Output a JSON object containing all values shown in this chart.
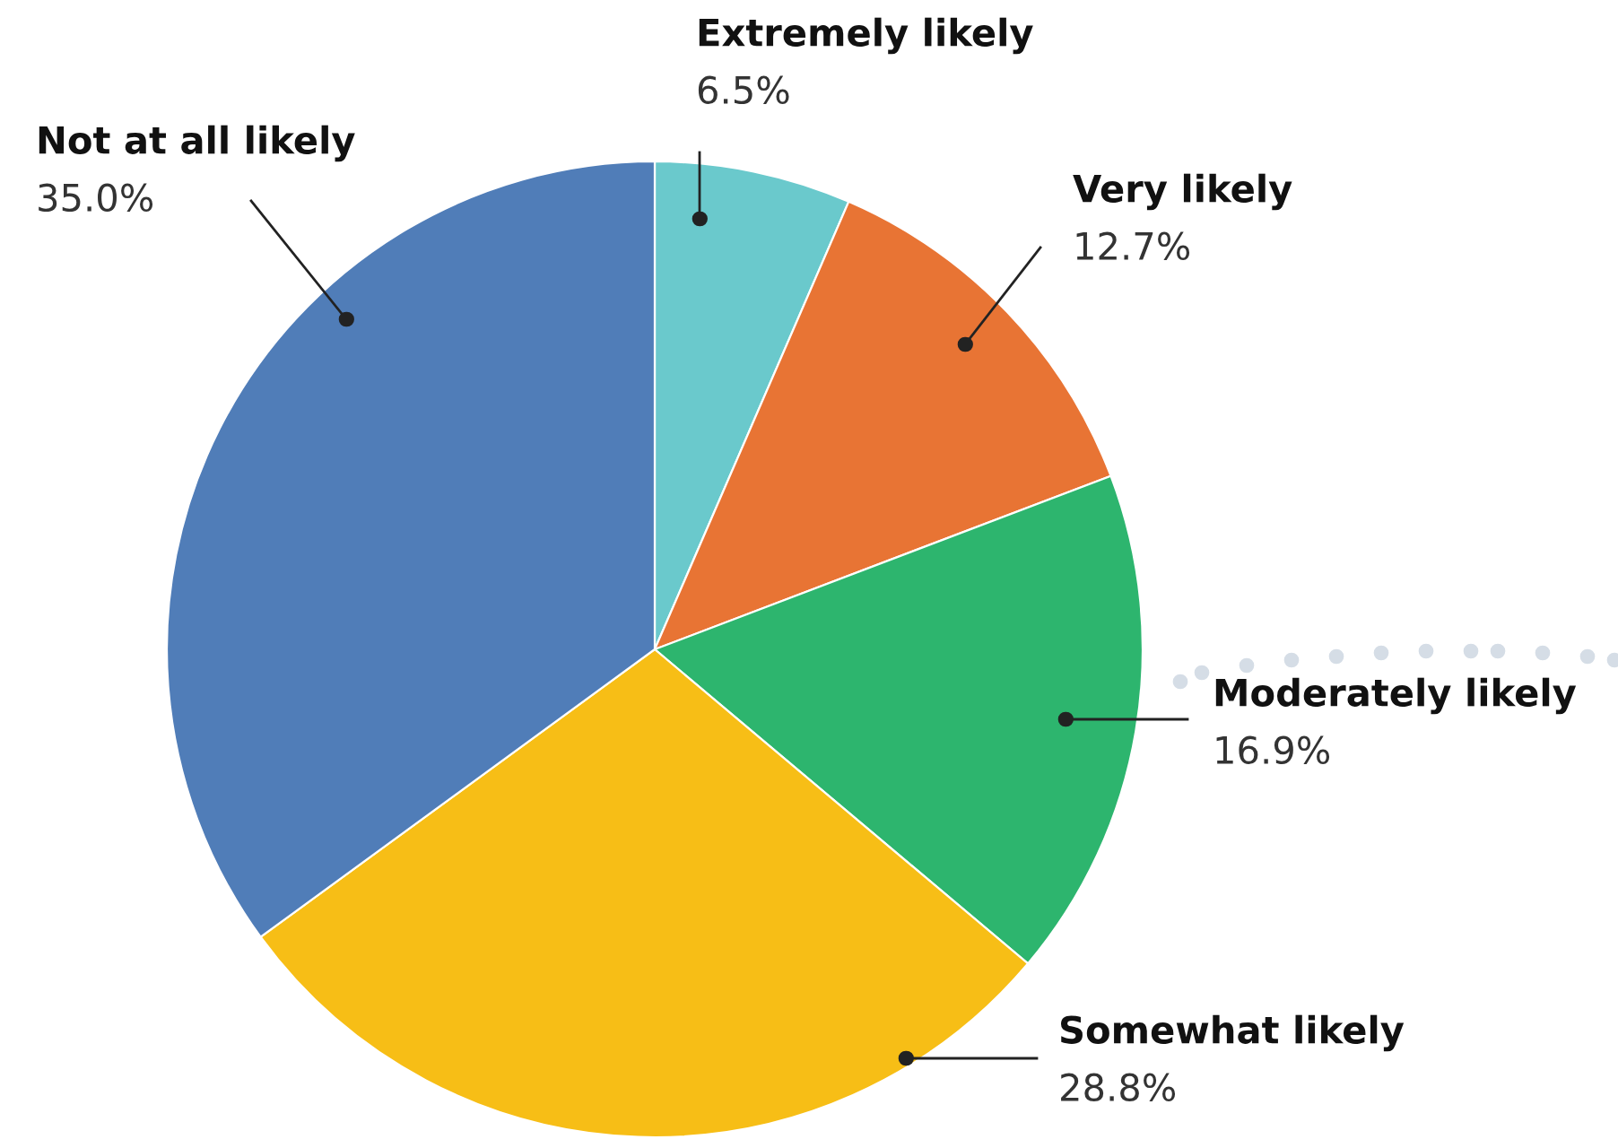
{
  "chart_data": {
    "type": "pie",
    "categories": [
      "Extremely likely",
      "Very likely",
      "Moderately likely",
      "Somewhat likely",
      "Not at all likely"
    ],
    "values": [
      6.5,
      12.7,
      16.9,
      28.8,
      35.0
    ],
    "value_labels": [
      "6.5%",
      "12.7%",
      "16.9%",
      "28.8%",
      "35.0%"
    ],
    "colors": [
      "#6ac9cc",
      "#e87434",
      "#2db56e",
      "#f7be16",
      "#507db8"
    ],
    "legend": false
  }
}
